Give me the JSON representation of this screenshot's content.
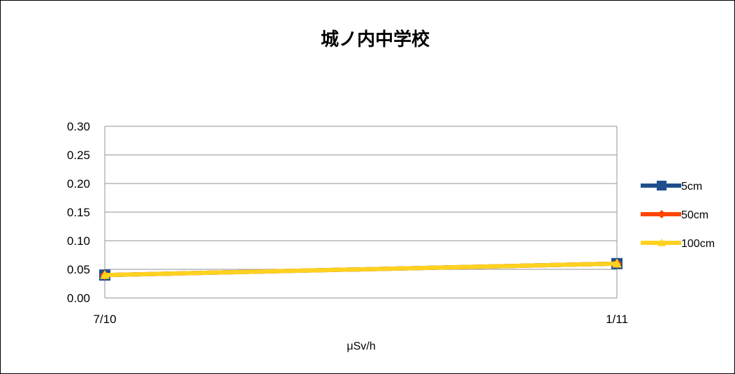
{
  "chart_data": {
    "type": "line",
    "title": "城ノ内中学校",
    "xlabel": "μSv/h",
    "ylabel": "",
    "categories": [
      "7/10",
      "1/11"
    ],
    "ylim": [
      0,
      0.3
    ],
    "yticks": [
      "0.00",
      "0.05",
      "0.10",
      "0.15",
      "0.20",
      "0.25",
      "0.30"
    ],
    "grid": true,
    "legend_position": "right",
    "series": [
      {
        "name": "5cm",
        "values": [
          0.04,
          0.06
        ],
        "color": "#1F4E8C",
        "marker": "square"
      },
      {
        "name": "50cm",
        "values": [
          0.04,
          0.06
        ],
        "color": "#FF4500",
        "marker": "diamond"
      },
      {
        "name": "100cm",
        "values": [
          0.04,
          0.06
        ],
        "color": "#FFD21F",
        "marker": "triangle"
      }
    ]
  }
}
